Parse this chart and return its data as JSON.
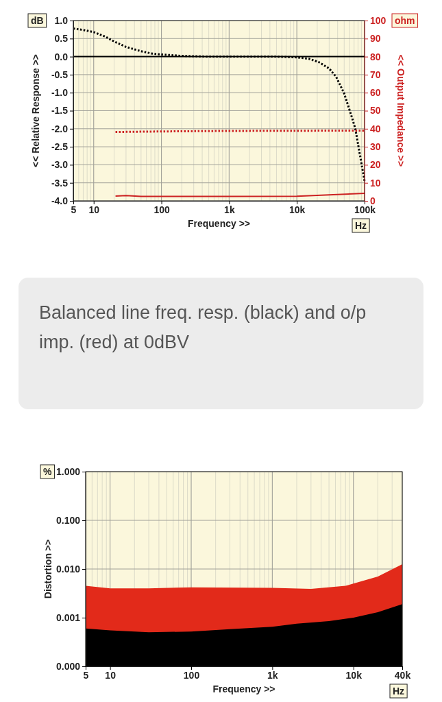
{
  "chart_data": [
    {
      "type": "line",
      "xlabel": "Frequency >>",
      "ylabel": "<< Relative Response >>",
      "y2label": "<< Output Impedance >>",
      "log": "x",
      "grid": true,
      "xlim": [
        5,
        100000
      ],
      "xticks": [
        5,
        10,
        100,
        {
          "value": 1000,
          "label": "1k"
        },
        {
          "value": 10000,
          "label": "10k"
        },
        {
          "value": 100000,
          "label": "100k"
        }
      ],
      "ylim": [
        -4,
        1
      ],
      "yticks": [
        {
          "value": -4,
          "label": "-4.0"
        },
        -3.5,
        {
          "value": -3,
          "label": "-3.0"
        },
        -2.5,
        {
          "value": -2,
          "label": "-2.0"
        },
        -1.5,
        {
          "value": -1,
          "label": "-1.0"
        },
        -0.5,
        {
          "value": 0,
          "label": "0.0"
        },
        0.5,
        {
          "value": 1,
          "label": "1.0"
        }
      ],
      "y2lim": [
        0,
        100
      ],
      "y2ticks": [
        0,
        10,
        20,
        30,
        40,
        50,
        60,
        70,
        80,
        90,
        100
      ],
      "annotations": [
        "dB",
        "ohm",
        "Hz"
      ],
      "series": [
        {
          "color": "#000000",
          "line_style": "solid",
          "x": [
            5,
            100000
          ],
          "values": [
            0,
            0
          ]
        },
        {
          "color": "#000000",
          "line_style": "dotted",
          "x": [
            5,
            7,
            10,
            15,
            20,
            30,
            50,
            70,
            100,
            200,
            500,
            1000,
            5000,
            10000,
            15000,
            21000,
            30000,
            38000,
            50000,
            66000,
            73000,
            85000,
            100000
          ],
          "values": [
            0.78,
            0.74,
            0.68,
            0.55,
            0.42,
            0.27,
            0.15,
            0.09,
            0.06,
            0.02,
            0,
            0,
            0,
            -0.02,
            -0.06,
            -0.15,
            -0.33,
            -0.56,
            -1.02,
            -1.72,
            -2.0,
            -2.7,
            -3.45
          ]
        },
        {
          "color": "#cc2222",
          "line_style": "dotted",
          "axis": "y2",
          "x": [
            21,
            100,
            1000,
            10000,
            100000
          ],
          "values": [
            38.2,
            38.5,
            38.8,
            38.9,
            39
          ]
        },
        {
          "color": "#cc2222",
          "line_style": "solid",
          "axis": "y2",
          "x": [
            21,
            30,
            50,
            100,
            1000,
            10000,
            30000,
            100000
          ],
          "values": [
            2.7,
            2.9,
            2.5,
            2.5,
            2.5,
            2.6,
            3.3,
            4.2
          ]
        }
      ]
    },
    {
      "type": "other",
      "title": "Balanced line freq. resp. (black) and o/p imp. (red) at 0dBV"
    },
    {
      "type": "area",
      "xlabel": "Frequency >>",
      "ylabel": "Distortion >>",
      "log": "xy",
      "grid": true,
      "xlim": [
        5,
        40000
      ],
      "xticks": [
        5,
        10,
        100,
        {
          "value": 1000,
          "label": "1k"
        },
        {
          "value": 10000,
          "label": "10k"
        },
        {
          "value": 40000,
          "label": "40k"
        }
      ],
      "ylim": [
        0.0001,
        1
      ],
      "yticks": [
        {
          "value": 0.0001,
          "label": "0.000"
        },
        {
          "value": 0.001,
          "label": "0.001"
        },
        {
          "value": 0.01,
          "label": "0.010"
        },
        {
          "value": 0.1,
          "label": "0.100"
        },
        {
          "value": 1,
          "label": "1.000"
        }
      ],
      "annotations": [
        "%",
        "Hz"
      ],
      "series": [
        {
          "color": "#e22a1a",
          "x": [
            5,
            10,
            30,
            100,
            1000,
            3000,
            8000,
            10000,
            20000,
            40000
          ],
          "values": [
            0.0045,
            0.004,
            0.004,
            0.0042,
            0.0041,
            0.0039,
            0.0045,
            0.005,
            0.007,
            0.0125
          ]
        },
        {
          "color": "#000000",
          "x": [
            5,
            10,
            30,
            100,
            300,
            1000,
            2000,
            5000,
            10000,
            20000,
            40000
          ],
          "values": [
            0.0006,
            0.00055,
            0.0005,
            0.00052,
            0.00058,
            0.00065,
            0.00075,
            0.00085,
            0.001,
            0.0013,
            0.0019
          ]
        }
      ]
    }
  ]
}
